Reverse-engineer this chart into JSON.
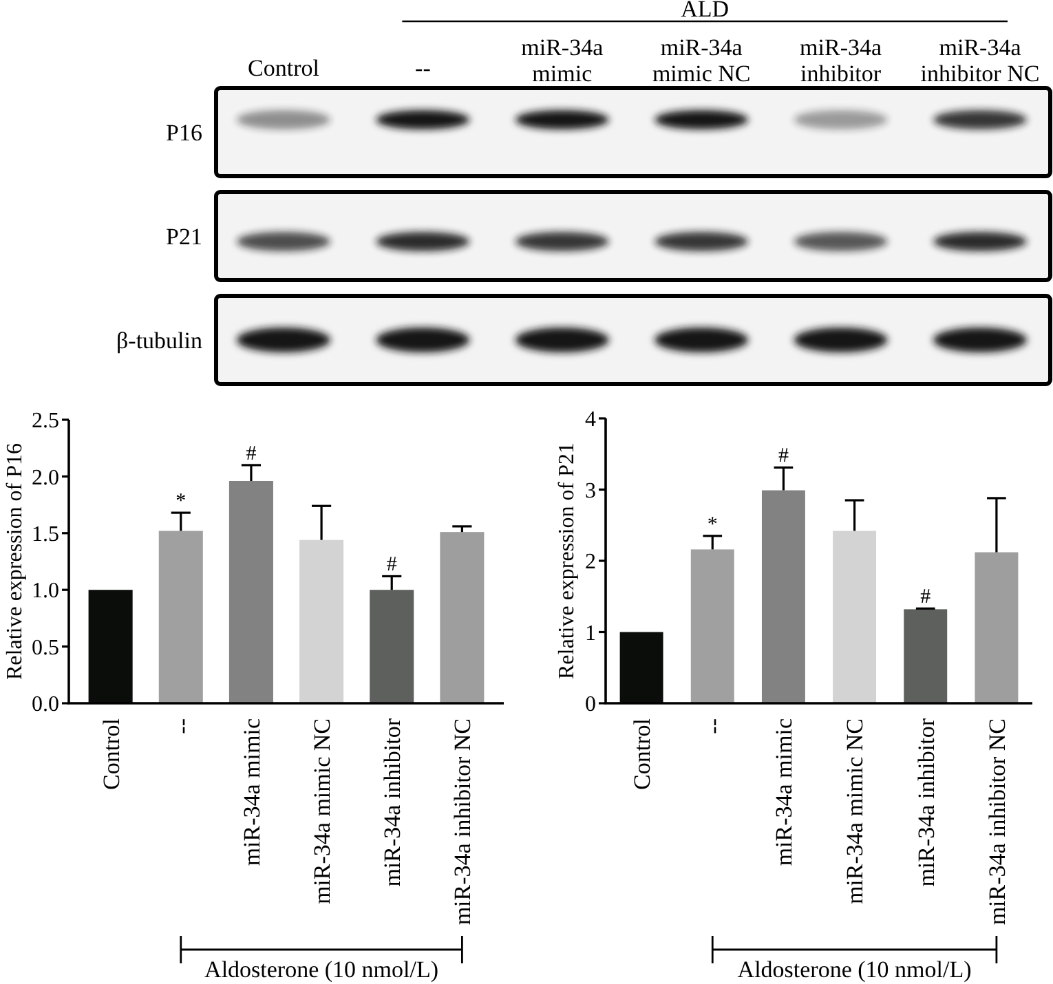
{
  "chart_data": [
    {
      "type": "other",
      "categories": [
        "Control",
        "--",
        "miR-34a mimic",
        "miR-34a mimic NC",
        "miR-34a inhibitor",
        "miR-34a inhibitor NC"
      ],
      "y_categories": [
        "P16",
        "P21",
        "β-tubulin"
      ],
      "annotations": [
        "ALD"
      ]
    },
    {
      "type": "bar",
      "categories": [
        "Control",
        "--",
        "miR-34a mimic",
        "miR-34a mimic NC",
        "miR-34a inhibitor",
        "miR-34a inhibitor NC"
      ],
      "values": [
        1.0,
        1.52,
        1.96,
        1.44,
        1.0,
        1.51
      ],
      "errors": [
        null,
        0.16,
        0.14,
        0.3,
        0.12,
        0.05
      ],
      "colors": [
        "#0b0d0a",
        "#a0a0a0",
        "#828282",
        "#d3d3d3",
        "#5e605e",
        "#9e9e9e"
      ],
      "ylabel": "Relative expression of P16",
      "ylim": [
        0,
        2.5
      ],
      "yticks": [
        {
          "value": 0,
          "label": "0.0"
        },
        0.5,
        {
          "value": 1,
          "label": "1.0"
        },
        1.5,
        {
          "value": 2,
          "label": "2.0"
        },
        2.5
      ],
      "annotations": [
        {
          "text": "*",
          "x": "--",
          "y": 1.68
        },
        {
          "text": "#",
          "x": "miR-34a mimic",
          "y": 2.1
        },
        {
          "text": "#",
          "x": "miR-34a inhibitor",
          "y": 1.12
        },
        "Aldosterone (10 nmol/L)"
      ]
    },
    {
      "type": "bar",
      "categories": [
        "Control",
        "--",
        "miR-34a mimic",
        "miR-34a mimic NC",
        "miR-34a inhibitor",
        "miR-34a inhibitor NC"
      ],
      "values": [
        1.0,
        2.16,
        2.99,
        2.42,
        1.32,
        2.12
      ],
      "errors": [
        null,
        0.19,
        0.32,
        0.43,
        0.01,
        0.76
      ],
      "colors": [
        "#0b0d0a",
        "#a0a0a0",
        "#828282",
        "#d3d3d3",
        "#5e605e",
        "#9e9e9e"
      ],
      "ylabel": "Relative expression of P21",
      "ylim": [
        0,
        4
      ],
      "yticks": [
        0,
        1,
        2,
        3,
        4
      ],
      "annotations": [
        {
          "text": "*",
          "x": "--",
          "y": 2.35
        },
        {
          "text": "#",
          "x": "miR-34a mimic",
          "y": 3.31
        },
        {
          "text": "#",
          "x": "miR-34a inhibitor",
          "y": 1.33
        },
        "Aldosterone (10 nmol/L)"
      ]
    }
  ]
}
